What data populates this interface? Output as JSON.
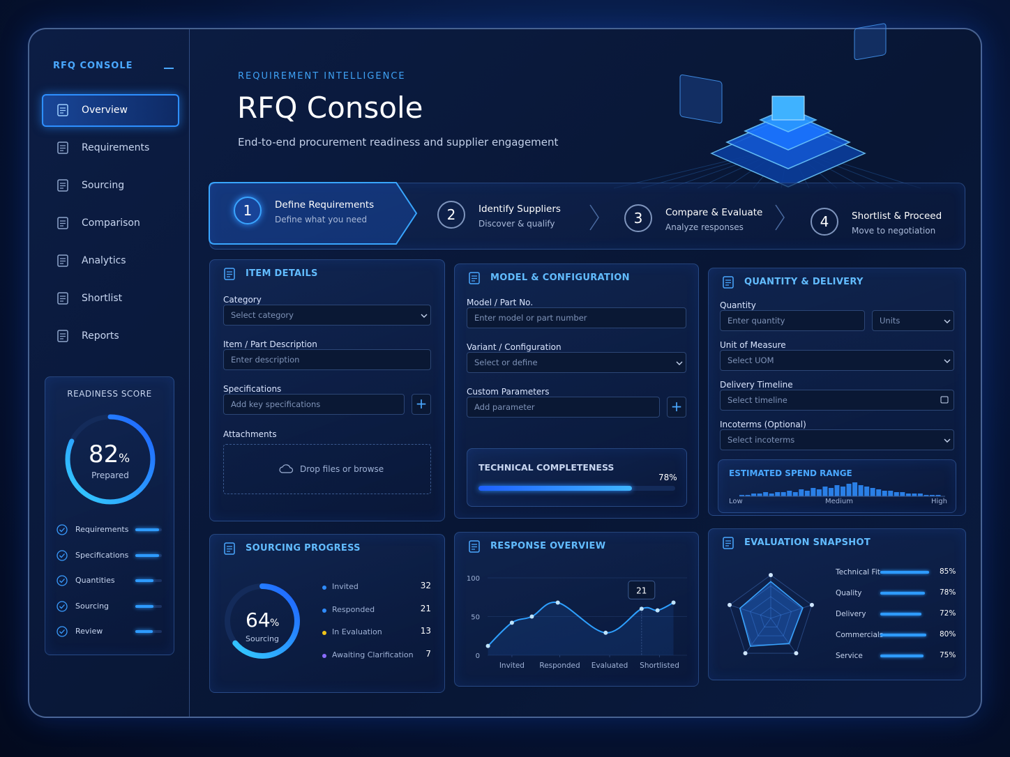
{
  "sidebar": {
    "brand": "RFQ CONSOLE",
    "nav": [
      "Overview",
      "Requirements",
      "Sourcing",
      "Comparison",
      "Analytics",
      "Shortlist",
      "Reports"
    ]
  },
  "readiness": {
    "title": "READINESS SCORE",
    "value": 82,
    "unit": "%",
    "caption": "Prepared",
    "items": [
      {
        "label": "Requirements",
        "value": 90
      },
      {
        "label": "Specifications",
        "value": 90
      },
      {
        "label": "Quantities",
        "value": 68
      },
      {
        "label": "Sourcing",
        "value": 68
      },
      {
        "label": "Review",
        "value": 65
      }
    ]
  },
  "header": {
    "eyebrow": "REQUIREMENT INTELLIGENCE",
    "title": "RFQ Console",
    "subtitle": "End-to-end procurement readiness and supplier engagement"
  },
  "steps": [
    {
      "number": 1,
      "title": "Define Requirements",
      "subtitle": "Define what you need"
    },
    {
      "number": 2,
      "title": "Identify Suppliers",
      "subtitle": "Discover & qualify"
    },
    {
      "number": 3,
      "title": "Compare & Evaluate",
      "subtitle": "Analyze responses"
    },
    {
      "number": 4,
      "title": "Shortlist & Proceed",
      "subtitle": "Move to negotiation"
    }
  ],
  "item_details": {
    "title": "ITEM DETAILS",
    "fields": [
      {
        "label": "Category",
        "placeholder": "Select category"
      },
      {
        "label": "Item / Part Description",
        "placeholder": "Enter description"
      },
      {
        "label": "Specifications",
        "placeholder": "Add key specifications"
      }
    ],
    "attachments": {
      "label": "Attachments",
      "dropzone": "Drop files or browse"
    }
  },
  "model_configuration": {
    "title": "MODEL & CONFIGURATION",
    "fields": [
      {
        "label": "Model / Part No.",
        "placeholder": "Enter model or part number"
      },
      {
        "label": "Variant / Configuration",
        "placeholder": "Select or define"
      },
      {
        "label": "Custom Parameters",
        "placeholder": "Add parameter"
      }
    ],
    "completeness": {
      "title": "TECHNICAL COMPLETENESS",
      "value": 78,
      "label": "78%"
    }
  },
  "quantity_delivery": {
    "title": "QUANTITY & DELIVERY",
    "fields": [
      {
        "label": "Quantity",
        "placeholder": "Enter quantity",
        "unit": "Units"
      },
      {
        "label": "Unit of Measure",
        "placeholder": "Select UOM"
      },
      {
        "label": "Delivery Timeline",
        "placeholder": "Select timeline"
      },
      {
        "label": "Incoterms (Optional)",
        "placeholder": "Select incoterms"
      }
    ],
    "spend": {
      "title": "ESTIMATED SPEND RANGE",
      "scale_labels": [
        "Low",
        "Medium",
        "High"
      ],
      "bars": [
        1,
        1,
        2,
        2,
        3,
        2,
        3,
        3,
        4,
        3,
        5,
        4,
        6,
        5,
        7,
        6,
        8,
        7,
        9,
        10,
        8,
        7,
        6,
        5,
        4,
        4,
        3,
        3,
        2,
        2,
        2,
        1,
        1,
        1
      ]
    }
  },
  "sourcing_progress": {
    "title": "SOURCING PROGRESS",
    "value": 64,
    "unit": "%",
    "caption": "Sourcing",
    "items": [
      {
        "label": "Invited",
        "value": 32,
        "color": "#2f8cff"
      },
      {
        "label": "Responded",
        "value": 21,
        "color": "#2f8cff"
      },
      {
        "label": "In Evaluation",
        "value": 13,
        "color": "#f0c419"
      },
      {
        "label": "Awaiting Clarification",
        "value": 7,
        "color": "#8a6cff"
      }
    ]
  },
  "response_overview": {
    "title": "RESPONSE OVERVIEW",
    "chart": {
      "type": "line",
      "x": [
        0.3,
        1.5,
        2.5,
        3.8,
        6.2,
        8.0,
        8.8,
        9.6
      ],
      "values": [
        12,
        42,
        50,
        68,
        29,
        60,
        58,
        68
      ],
      "color": "#2ea0ff",
      "xlim": [
        0,
        10
      ],
      "xticks": [
        {
          "value": 1.5,
          "label": "Invited"
        },
        {
          "value": 3.9,
          "label": "Responded"
        },
        {
          "value": 6.4,
          "label": "Evaluated"
        },
        {
          "value": 8.9,
          "label": "Shortlisted"
        }
      ],
      "ylim": [
        0,
        100
      ],
      "yticks": [
        0,
        50,
        100
      ],
      "annotation": {
        "text": "21",
        "point": 5
      }
    }
  },
  "evaluation_snapshot": {
    "title": "EVALUATION SNAPSHOT",
    "items": [
      {
        "label": "Technical Fit",
        "value": 85,
        "value_label": "85%"
      },
      {
        "label": "Quality",
        "value": 78,
        "value_label": "78%"
      },
      {
        "label": "Delivery",
        "value": 72,
        "value_label": "72%"
      },
      {
        "label": "Commercials",
        "value": 80,
        "value_label": "80%"
      },
      {
        "label": "Service",
        "value": 75,
        "value_label": "75%"
      }
    ]
  }
}
